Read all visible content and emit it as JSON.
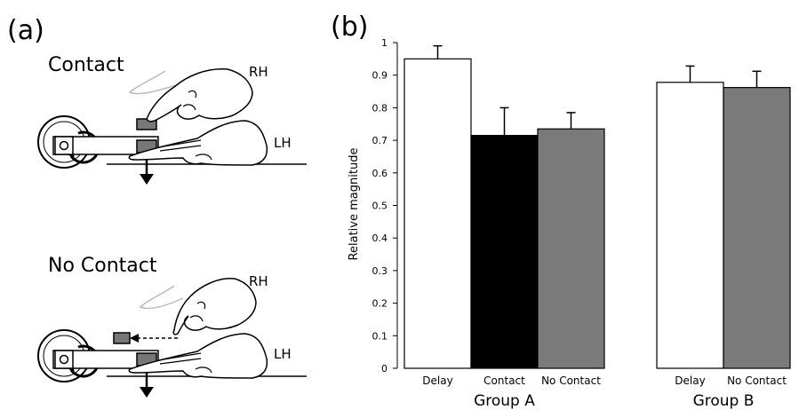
{
  "panel_a": {
    "label": "(a)",
    "contact_title": "Contact",
    "no_contact_title": "No Contact",
    "rh_label": "RH",
    "lh_label": "LH"
  },
  "panel_b": {
    "label": "(b)"
  },
  "chart_data": {
    "type": "bar",
    "ylabel": "Relative magnitude",
    "ylim": [
      0,
      1
    ],
    "yticks": [
      "0",
      "0.1",
      "0.2",
      "0.3",
      "0.4",
      "0.5",
      "0.6",
      "0.7",
      "0.8",
      "0.9",
      "1"
    ],
    "groups": [
      {
        "name": "Group A",
        "bars": [
          {
            "label": "Delay",
            "value": 0.95,
            "error": 0.04,
            "color": "#ffffff"
          },
          {
            "label": "Contact",
            "value": 0.715,
            "error": 0.085,
            "color": "#000000"
          },
          {
            "label": "No Contact",
            "value": 0.735,
            "error": 0.05,
            "color": "#7a7a7a"
          }
        ]
      },
      {
        "name": "Group B",
        "bars": [
          {
            "label": "Delay",
            "value": 0.878,
            "error": 0.05,
            "color": "#ffffff"
          },
          {
            "label": "No Contact",
            "value": 0.862,
            "error": 0.05,
            "color": "#7a7a7a"
          }
        ]
      }
    ]
  }
}
